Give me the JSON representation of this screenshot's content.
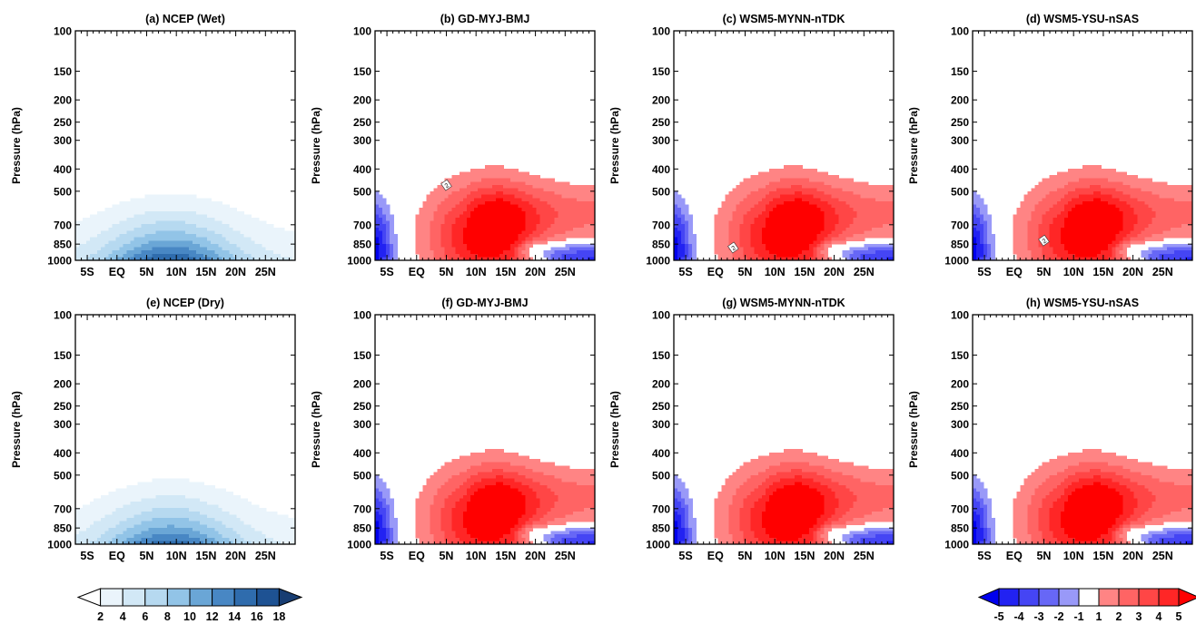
{
  "chart_data": [
    {
      "type": "contour",
      "panel": "a",
      "title": "(a) NCEP (Wet)",
      "ylabel": "Pressure (hPa)",
      "y_log": true,
      "xlim": [
        -7,
        30
      ],
      "ylim": [
        1000,
        100
      ],
      "colormap": "blues"
    },
    {
      "type": "contour",
      "panel": "b",
      "title": "(b) GD-MYJ-BMJ",
      "ylabel": "Pressure (hPa)",
      "y_log": true,
      "xlim": [
        -7,
        30
      ],
      "ylim": [
        1000,
        100
      ],
      "colormap": "diverging",
      "contour_labels": [
        "2"
      ]
    },
    {
      "type": "contour",
      "panel": "c",
      "title": "(c) WSM5-MYNN-nTDK",
      "ylabel": "Pressure (hPa)",
      "y_log": true,
      "xlim": [
        -7,
        30
      ],
      "ylim": [
        1000,
        100
      ],
      "colormap": "diverging",
      "contour_labels": [
        "2"
      ]
    },
    {
      "type": "contour",
      "panel": "d",
      "title": "(d) WSM5-YSU-nSAS",
      "ylabel": "Pressure (hPa)",
      "y_log": true,
      "xlim": [
        -7,
        30
      ],
      "ylim": [
        1000,
        100
      ],
      "colormap": "diverging",
      "contour_labels": [
        "2"
      ]
    },
    {
      "type": "contour",
      "panel": "e",
      "title": "(e) NCEP (Dry)",
      "ylabel": "Pressure (hPa)",
      "y_log": true,
      "xlim": [
        -7,
        30
      ],
      "ylim": [
        1000,
        100
      ],
      "colormap": "blues"
    },
    {
      "type": "contour",
      "panel": "f",
      "title": "(f) GD-MYJ-BMJ",
      "ylabel": "Pressure (hPa)",
      "y_log": true,
      "xlim": [
        -7,
        30
      ],
      "ylim": [
        1000,
        100
      ],
      "colormap": "diverging"
    },
    {
      "type": "contour",
      "panel": "g",
      "title": "(g) WSM5-MYNN-nTDK",
      "ylabel": "Pressure (hPa)",
      "y_log": true,
      "xlim": [
        -7,
        30
      ],
      "ylim": [
        1000,
        100
      ],
      "colormap": "diverging"
    },
    {
      "type": "contour",
      "panel": "h",
      "title": "(h) WSM5-YSU-nSAS",
      "ylabel": "Pressure (hPa)",
      "y_log": true,
      "xlim": [
        -7,
        30
      ],
      "ylim": [
        1000,
        100
      ],
      "colormap": "diverging"
    }
  ],
  "axes": {
    "yticks": [
      100,
      150,
      200,
      250,
      300,
      400,
      500,
      700,
      850,
      1000
    ],
    "ytick_labels": [
      "100",
      "150",
      "200",
      "250",
      "300",
      "400",
      "500",
      "700",
      "850",
      "1000"
    ],
    "xticks": [
      -5,
      0,
      5,
      10,
      15,
      20,
      25
    ],
    "xtick_labels": [
      "5S",
      "EQ",
      "5N",
      "10N",
      "15N",
      "20N",
      "25N"
    ]
  },
  "colorbars": {
    "blues": {
      "labels": [
        "2",
        "4",
        "6",
        "8",
        "10",
        "12",
        "14",
        "16",
        "18"
      ],
      "colors": [
        "#ffffff",
        "#eaf4fb",
        "#d2e8f6",
        "#b6d9f0",
        "#92c4e7",
        "#6aa6d6",
        "#4887c4",
        "#2f6cad",
        "#1e5293",
        "#183d72"
      ]
    },
    "diverging": {
      "labels": [
        "-5",
        "-4",
        "-3",
        "-2",
        "-1",
        "1",
        "2",
        "3",
        "4",
        "5"
      ],
      "colors": [
        "#0000ee",
        "#2222f2",
        "#4545f4",
        "#6767f6",
        "#9999f8",
        "#ffffff",
        "#ff8484",
        "#ff6464",
        "#ff4646",
        "#ff2626",
        "#ff0000"
      ]
    }
  }
}
